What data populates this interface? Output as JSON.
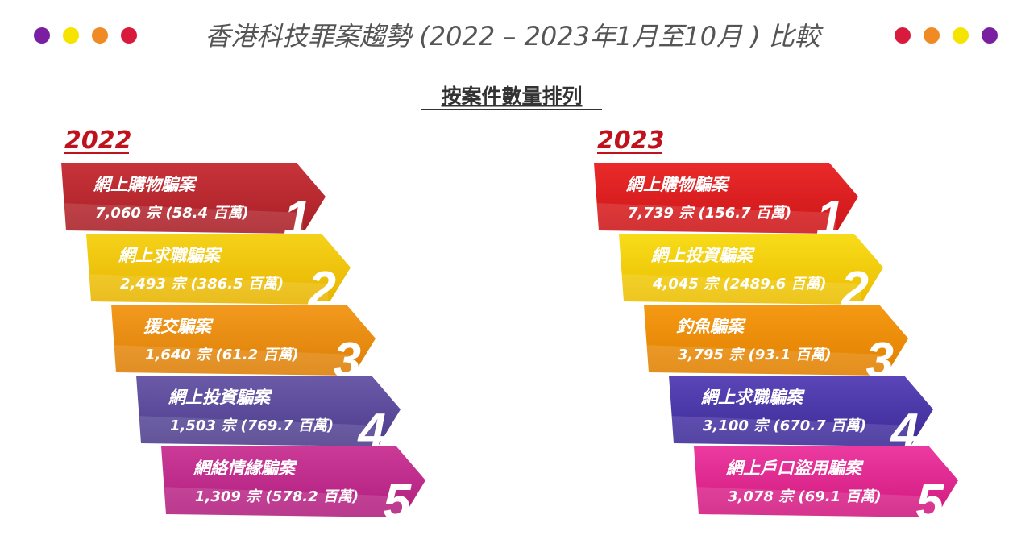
{
  "header": {
    "title": "香港科技罪案趨勢 (2022 – 2023年1月至10月 ) 比較",
    "subtitle": "按案件數量排列"
  },
  "panels": [
    {
      "year": "2022",
      "items": [
        {
          "name": "網上購物騙案",
          "stat": "7,060 宗 (58.4 百萬)",
          "rank": 1
        },
        {
          "name": "網上求職騙案",
          "stat": "2,493 宗 (386.5 百萬)",
          "rank": 2
        },
        {
          "name": "援交騙案",
          "stat": "1,640 宗 (61.2 百萬)",
          "rank": 3
        },
        {
          "name": "網上投資騙案",
          "stat": "1,503 宗 (769.7 百萬)",
          "rank": 4
        },
        {
          "name": "網絡情緣騙案",
          "stat": "1,309  宗 (578.2 百萬)",
          "rank": 5
        }
      ]
    },
    {
      "year": "2023",
      "items": [
        {
          "name": "網上購物騙案",
          "stat": "7,739 宗  (156.7 百萬)",
          "rank": 1
        },
        {
          "name": "網上投資騙案",
          "stat": "4,045 宗 (2489.6 百萬)",
          "rank": 2
        },
        {
          "name": "釣魚騙案",
          "stat": "3,795 宗 (93.1 百萬)",
          "rank": 3
        },
        {
          "name": "網上求職騙案",
          "stat": "3,100 宗 (670.7 百萬)",
          "rank": 4
        },
        {
          "name": "網上戶口盜用騙案",
          "stat": "3,078 宗 (69.1 百萬)",
          "rank": 5
        }
      ]
    }
  ]
}
